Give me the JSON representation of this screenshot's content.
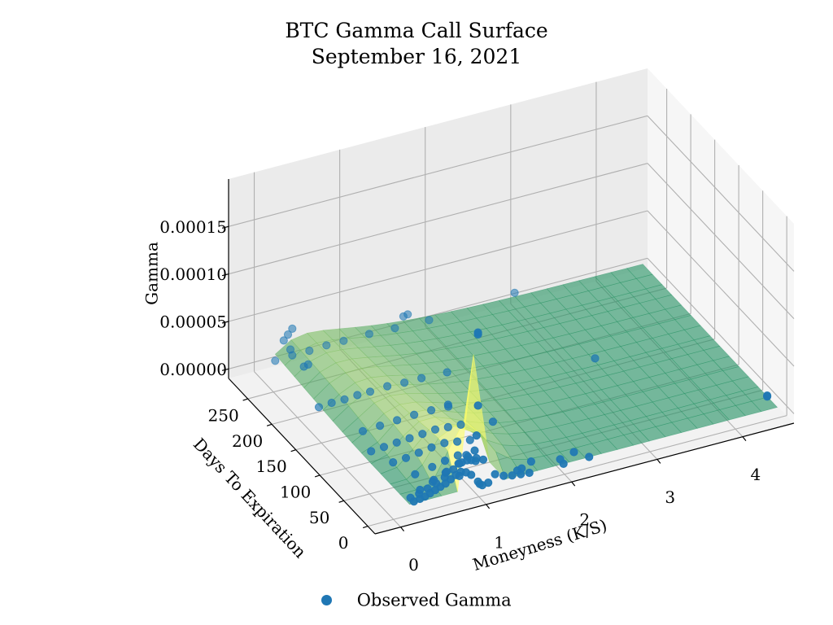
{
  "chart_data": {
    "type": "surface3d",
    "title": "BTC Gamma Call Surface",
    "subtitle": "September 16, 2021",
    "xlabel": "Moneyness (K/S)",
    "ylabel": "Days To Expiration",
    "zlabel": "Gamma",
    "xticks": [
      "0",
      "1",
      "2",
      "3",
      "4"
    ],
    "yticks": [
      "0",
      "50",
      "100",
      "150",
      "200",
      "250"
    ],
    "zticks": [
      "0.00000",
      "0.00005",
      "0.00010",
      "0.00015"
    ],
    "xlim": [
      -0.3,
      4.6
    ],
    "ylim": [
      -15,
      290
    ],
    "zlim": [
      -1e-05,
      0.0002
    ],
    "legend": {
      "label": "Observed Gamma",
      "position": "bottom-center"
    },
    "surface_colormap": "summer",
    "series": [
      {
        "name": "Observed Gamma",
        "points": [
          [
            0.25,
            2,
            2e-06
          ],
          [
            0.32,
            2,
            3e-06
          ],
          [
            0.38,
            2,
            4e-06
          ],
          [
            0.44,
            2,
            6e-06
          ],
          [
            0.5,
            2,
            8e-06
          ],
          [
            0.56,
            2,
            1e-05
          ],
          [
            0.62,
            2,
            1.2e-05
          ],
          [
            0.68,
            2,
            1.5e-05
          ],
          [
            0.74,
            2,
            1.8e-05
          ],
          [
            0.8,
            2,
            2e-05
          ],
          [
            0.86,
            2,
            1.8e-05
          ],
          [
            0.92,
            2,
            1.4e-05
          ],
          [
            0.25,
            9,
            2e-06
          ],
          [
            0.35,
            9,
            4e-06
          ],
          [
            0.45,
            9,
            7e-06
          ],
          [
            0.55,
            9,
            1e-05
          ],
          [
            0.65,
            9,
            1.4e-05
          ],
          [
            0.75,
            9,
            2e-05
          ],
          [
            0.85,
            9,
            2.5e-05
          ],
          [
            0.4,
            16,
            3e-06
          ],
          [
            0.55,
            16,
            8e-06
          ],
          [
            0.7,
            16,
            1.4e-05
          ],
          [
            0.85,
            16,
            2e-05
          ],
          [
            0.6,
            23,
            5e-06
          ],
          [
            0.75,
            23,
            1e-05
          ],
          [
            0.9,
            23,
            1.5e-05
          ],
          [
            1.0,
            23,
            2e-05
          ],
          [
            0.5,
            44,
            2e-06
          ],
          [
            0.7,
            44,
            5e-06
          ],
          [
            0.85,
            44,
            8e-06
          ],
          [
            1.0,
            44,
            1e-05
          ],
          [
            1.1,
            44,
            8e-06
          ],
          [
            0.4,
            72,
            2e-06
          ],
          [
            0.55,
            72,
            3e-06
          ],
          [
            0.7,
            72,
            5e-06
          ],
          [
            0.85,
            72,
            7e-06
          ],
          [
            1.0,
            72,
            8e-06
          ],
          [
            1.15,
            72,
            6e-06
          ],
          [
            1.3,
            72,
            4e-06
          ],
          [
            0.3,
            100,
            1e-06
          ],
          [
            0.45,
            100,
            2e-06
          ],
          [
            0.6,
            100,
            3e-06
          ],
          [
            0.75,
            100,
            4e-06
          ],
          [
            0.9,
            100,
            5e-06
          ],
          [
            1.05,
            100,
            6e-06
          ],
          [
            1.2,
            100,
            5e-06
          ],
          [
            1.35,
            100,
            4e-06
          ],
          [
            0.4,
            135,
            1e-06
          ],
          [
            0.6,
            135,
            2e-06
          ],
          [
            0.8,
            135,
            3e-06
          ],
          [
            1.0,
            135,
            4e-06
          ],
          [
            1.2,
            135,
            4e-06
          ],
          [
            1.4,
            135,
            3e-06
          ],
          [
            0.2,
            191,
            1e-06
          ],
          [
            0.35,
            191,
            2e-06
          ],
          [
            0.5,
            191,
            2e-06
          ],
          [
            0.65,
            191,
            3e-06
          ],
          [
            0.8,
            191,
            3e-06
          ],
          [
            1.0,
            191,
            4e-06
          ],
          [
            1.2,
            191,
            3e-06
          ],
          [
            1.4,
            191,
            3e-06
          ],
          [
            1.7,
            191,
            2e-06
          ],
          [
            0.2,
            282,
            1e-06
          ],
          [
            0.4,
            282,
            2e-06
          ],
          [
            0.6,
            282,
            2e-06
          ],
          [
            0.8,
            282,
            3e-06
          ],
          [
            1.0,
            282,
            3e-06
          ],
          [
            1.3,
            282,
            3e-06
          ],
          [
            1.6,
            282,
            2e-06
          ],
          [
            2.0,
            282,
            1e-06
          ],
          [
            0.3,
            282,
            2e-05
          ],
          [
            0.35,
            282,
            2.5e-05
          ],
          [
            0.4,
            282,
            3e-05
          ],
          [
            0.3,
            268,
            1.8e-05
          ],
          [
            0.3,
            240,
            1.5e-05
          ],
          [
            0.35,
            240,
            1.6e-05
          ],
          [
            1.0,
            2,
            5e-06
          ],
          [
            1.02,
            2,
            2e-06
          ],
          [
            1.05,
            2,
            0.0
          ],
          [
            1.12,
            2,
            1e-06
          ],
          [
            1.2,
            2,
            8e-06
          ],
          [
            1.3,
            2,
            4e-06
          ],
          [
            1.4,
            2,
            2e-06
          ],
          [
            1.5,
            2,
            1e-06
          ],
          [
            1.6,
            2,
            0.0
          ],
          [
            1.0,
            2,
            8.5e-05
          ],
          [
            1.0,
            2,
            0.00016
          ],
          [
            1.0,
            2,
            0.000162
          ],
          [
            1.0,
            5,
            5.2e-05
          ],
          [
            1.0,
            9,
            3.4e-05
          ],
          [
            1.0,
            16,
            2e-05
          ],
          [
            1.1,
            9,
            2.2e-05
          ],
          [
            1.05,
            16,
            1.8e-05
          ],
          [
            0.95,
            16,
            2.1e-05
          ],
          [
            1.1,
            23,
            1.6e-05
          ],
          [
            1.2,
            100,
            2.85e-05
          ],
          [
            1.7,
            282,
            1.2e-05
          ],
          [
            1.75,
            282,
            1.3e-05
          ],
          [
            3.0,
            282,
            6e-06
          ],
          [
            3.2,
            150,
            3e-06
          ],
          [
            1.5,
            60,
            2.5e-05
          ],
          [
            4.5,
            23,
            0.0
          ],
          [
            4.5,
            23,
            1e-06
          ],
          [
            1.5,
            9,
            1e-06
          ],
          [
            1.55,
            9,
            2e-06
          ],
          [
            1.7,
            16,
            2e-06
          ],
          [
            2.0,
            9,
            1e-06
          ],
          [
            2.2,
            16,
            0.0
          ],
          [
            2.0,
            2,
            0.0
          ],
          [
            2.3,
            2,
            0.0
          ],
          [
            0.9,
            23,
            2e-06
          ]
        ]
      }
    ]
  }
}
